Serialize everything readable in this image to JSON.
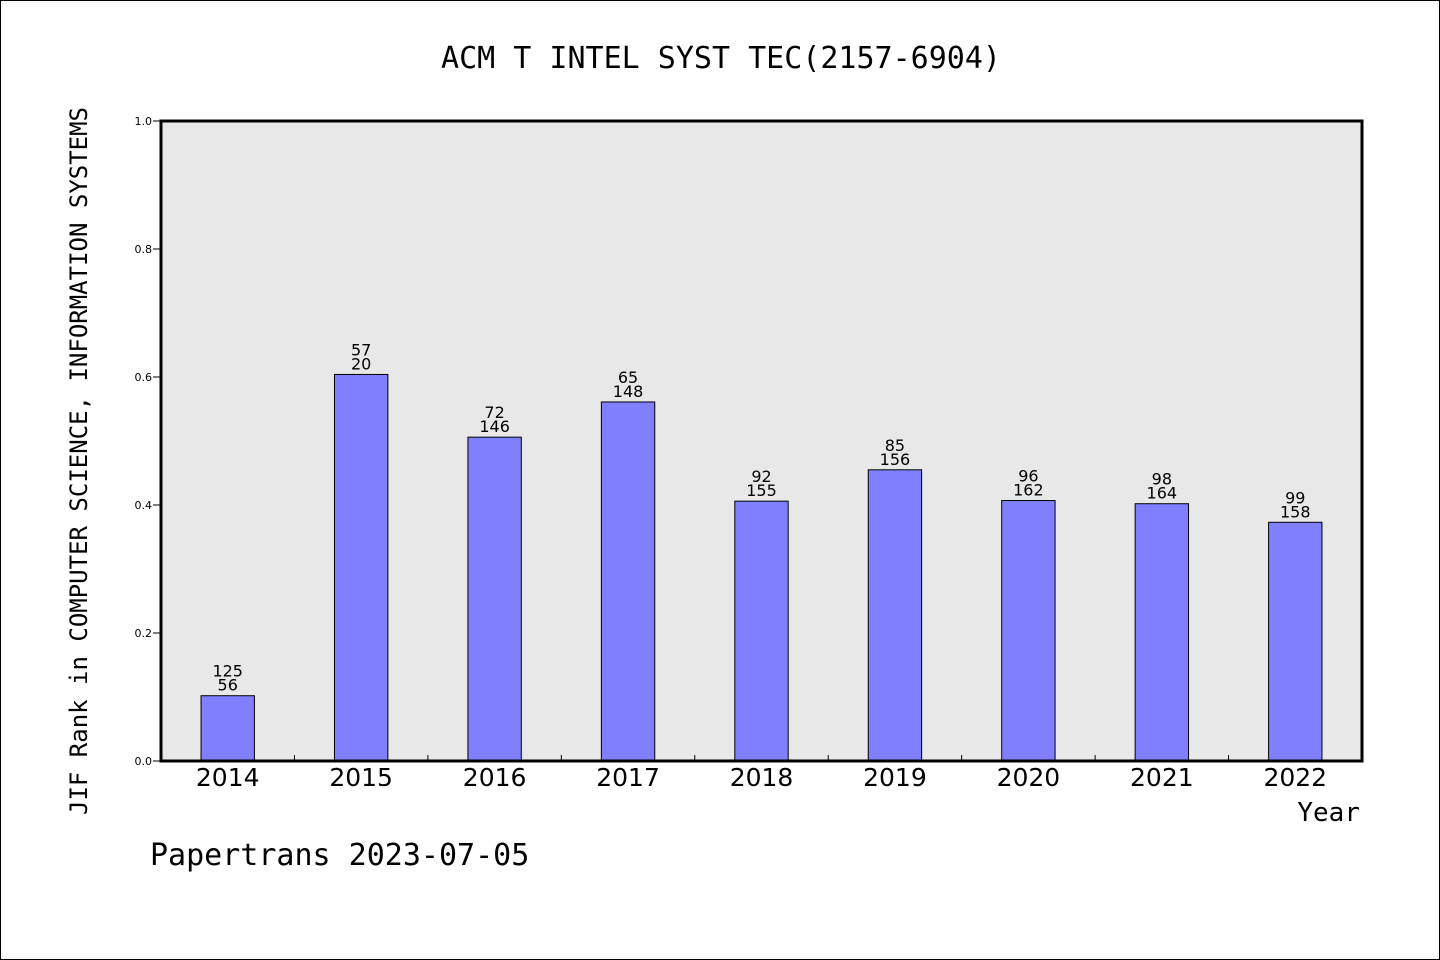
{
  "footer": {
    "text": "Papertrans 2023-07-05"
  },
  "chart_data": {
    "type": "bar",
    "title": "ACM T INTEL SYST TEC(2157-6904)",
    "xlabel": "Year",
    "ylabel": "JIF Rank in COMPUTER SCIENCE, INFORMATION SYSTEMS",
    "categories": [
      "2014",
      "2015",
      "2016",
      "2017",
      "2018",
      "2019",
      "2020",
      "2021",
      "2022"
    ],
    "values": [
      0.102,
      0.604,
      0.506,
      0.561,
      0.406,
      0.455,
      0.407,
      0.402,
      0.373
    ],
    "rank_labels": [
      "125",
      "57",
      "72",
      "65",
      "92",
      "85",
      "96",
      "98",
      "99"
    ],
    "total_labels": [
      "56",
      "20",
      "146",
      "148",
      "155",
      "156",
      "162",
      "164",
      "158"
    ],
    "yticks": [
      "0.0",
      "0.2",
      "0.4",
      "0.6",
      "0.8",
      "1.0"
    ],
    "ylim": [
      0,
      1
    ],
    "grid": false,
    "colors": {
      "bar": "#8080ff",
      "plot_bg": "#e8e8e8",
      "frame": "#000000"
    }
  }
}
